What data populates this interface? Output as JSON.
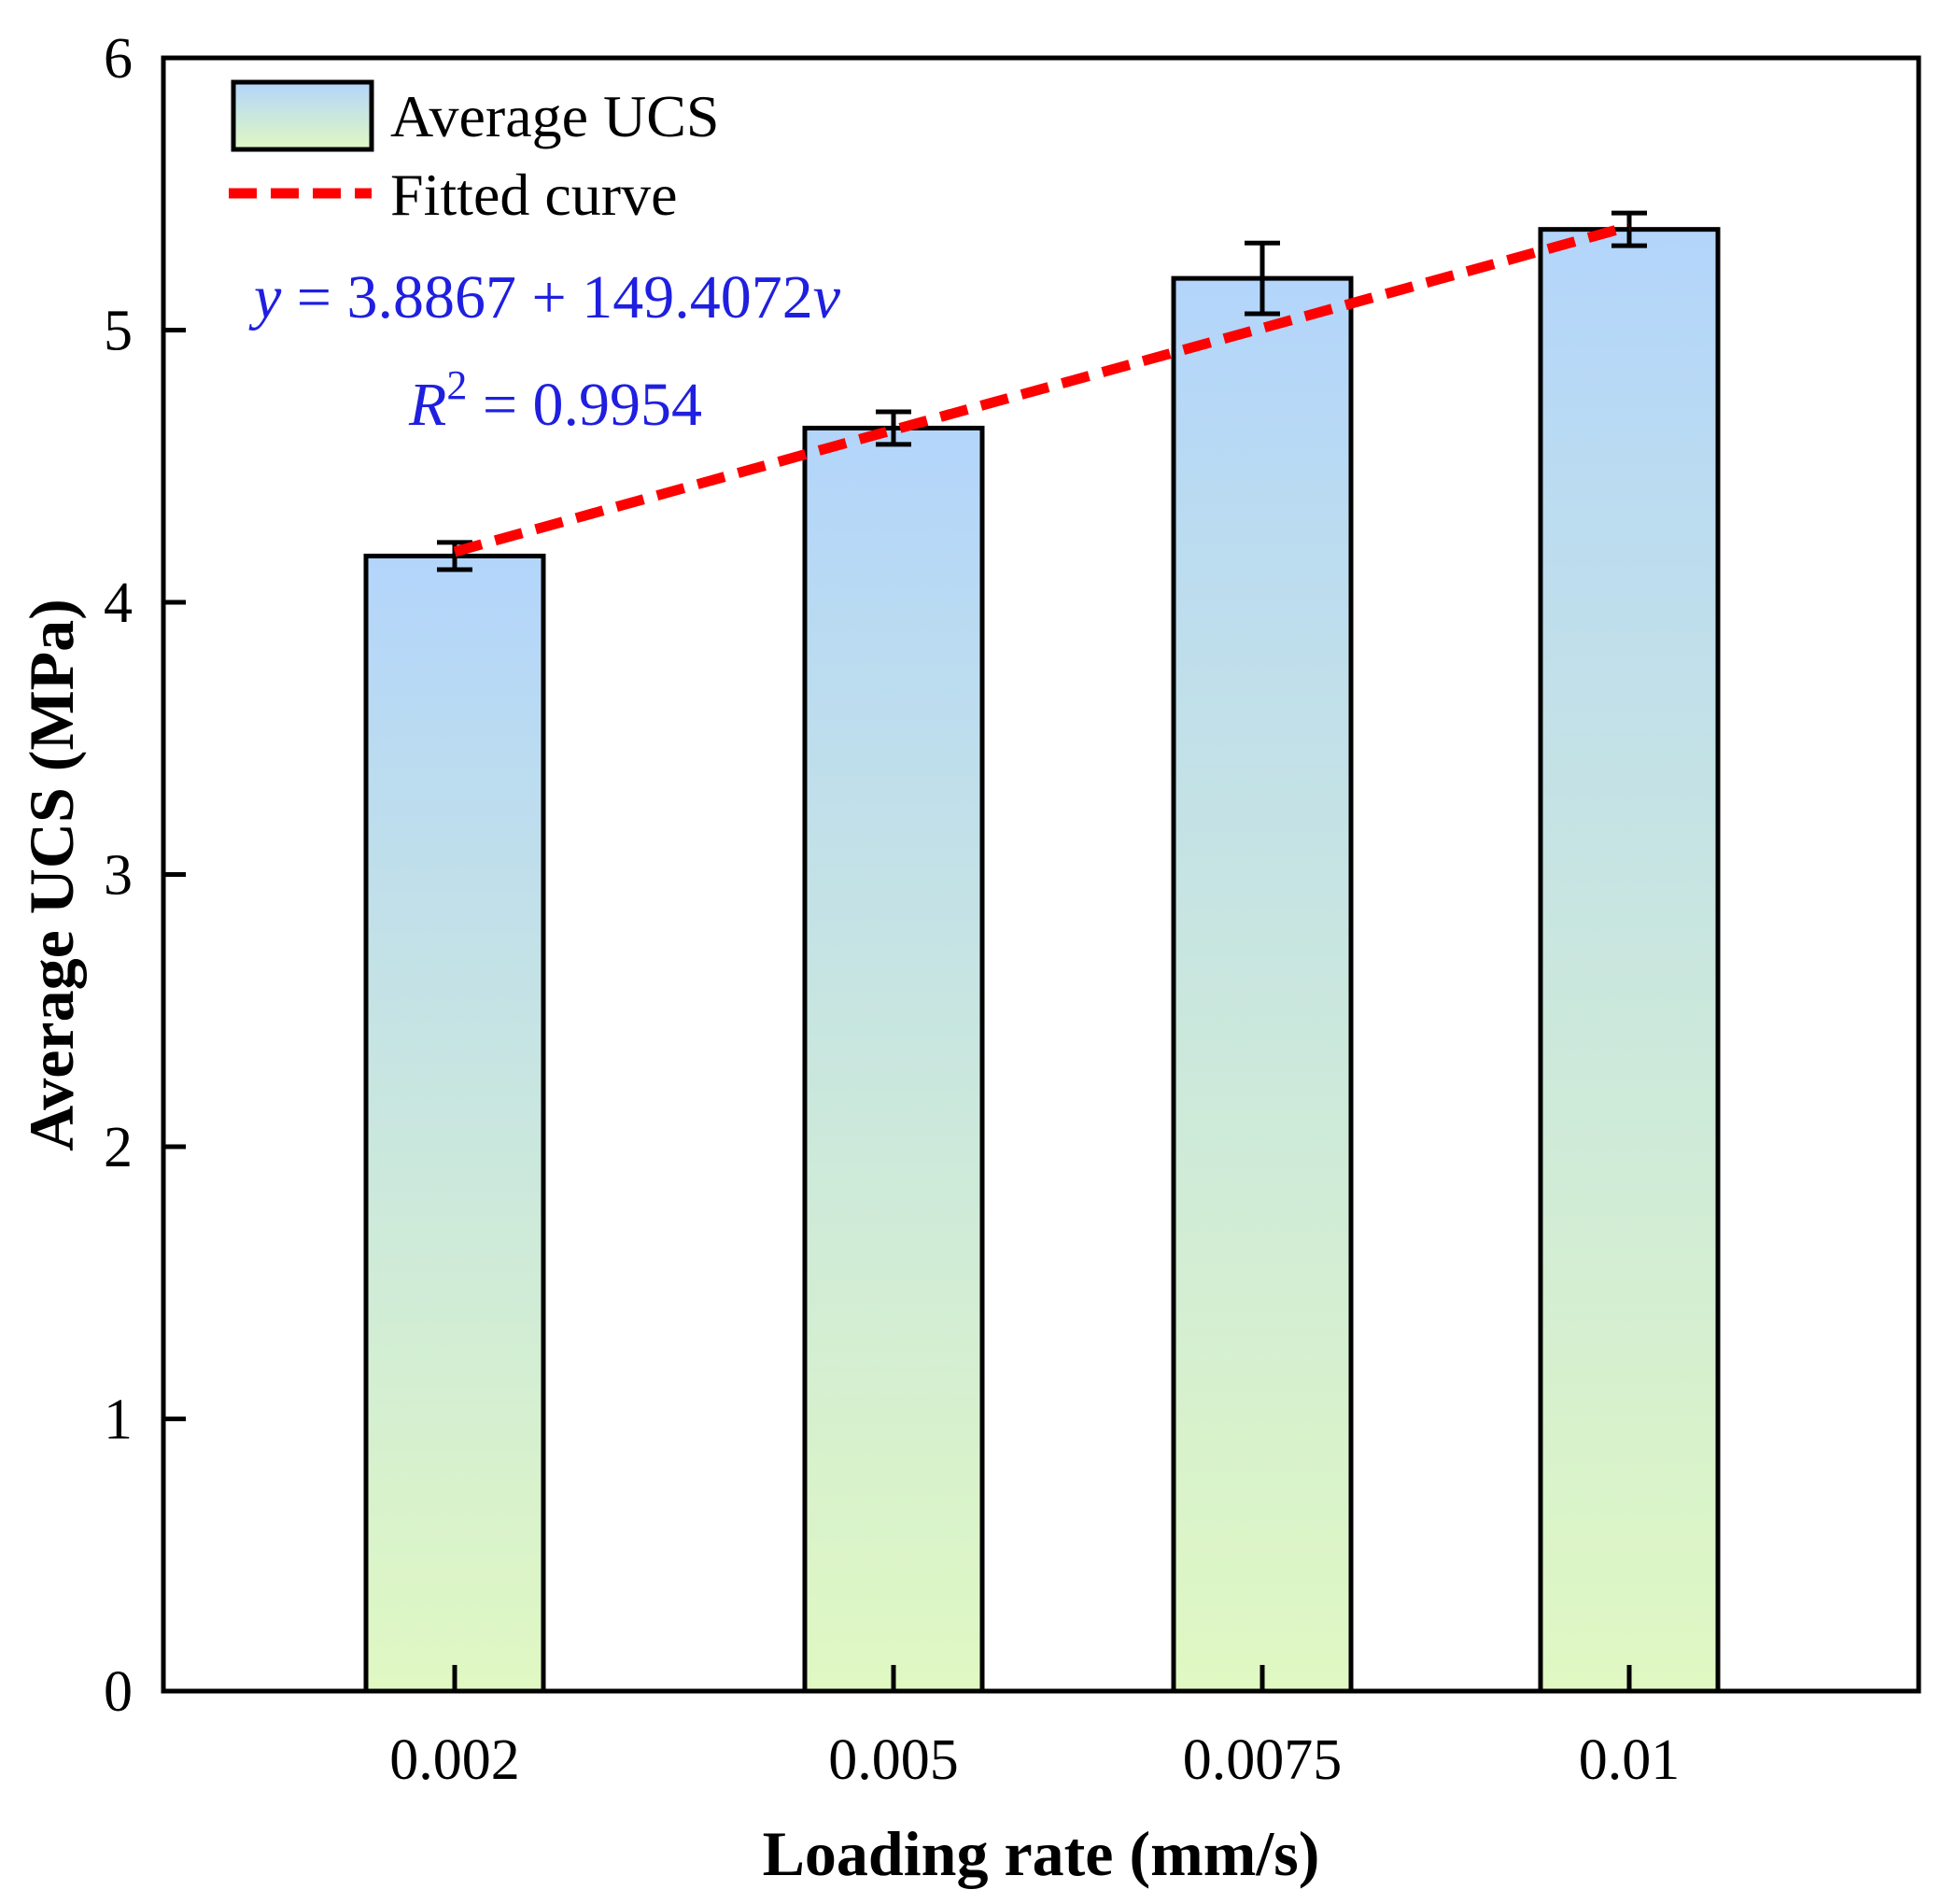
{
  "chart_data": {
    "type": "bar",
    "categories": [
      "0.002",
      "0.005",
      "0.0075",
      "0.01"
    ],
    "x": [
      0.002,
      0.005,
      0.0075,
      0.01
    ],
    "series": [
      {
        "name": "Average UCS",
        "values": [
          4.17,
          4.64,
          5.19,
          5.37
        ],
        "errors": [
          0.05,
          0.06,
          0.13,
          0.06
        ]
      }
    ],
    "fitted_curve": {
      "name": "Fitted curve",
      "intercept": 3.8867,
      "slope": 149.4072,
      "equation_parts": {
        "y": "y",
        "rhs": " = 3.8867 + 149.4072",
        "v": "v",
        "r": "R",
        "r_exp": "2",
        "r_value": " = 0.9954"
      }
    },
    "xlabel": "Loading rate (mm/s)",
    "ylabel": "Average UCS (MPa)",
    "ylim": [
      0,
      6
    ],
    "yticks": [
      "0",
      "1",
      "2",
      "3",
      "4",
      "5",
      "6"
    ],
    "grid": false,
    "legend_position": "top-left",
    "colors": {
      "bar_top": "#b3d5fb",
      "bar_bottom": "#e0f8c2",
      "fit_line": "#ff0000",
      "equation": "#1f1fe0",
      "axis": "#000000"
    }
  }
}
